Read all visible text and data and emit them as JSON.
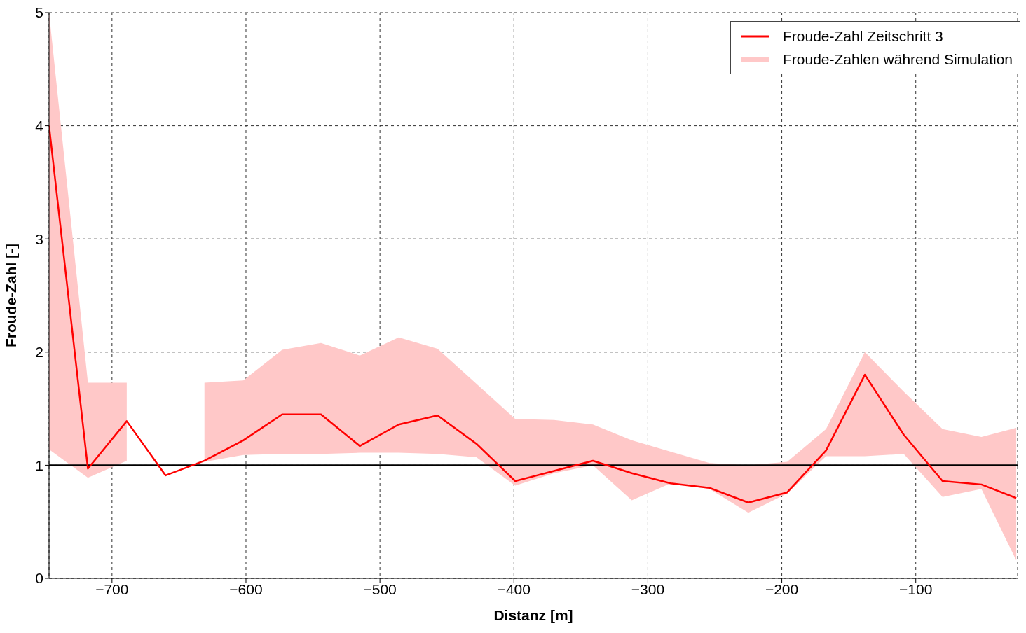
{
  "chart_data": {
    "type": "line",
    "xlabel": "Distanz [m]",
    "ylabel": "Froude-Zahl [-]",
    "x": [
      -747,
      -718,
      -689,
      -660,
      -631,
      -602,
      -573,
      -544,
      -515,
      -486,
      -457,
      -428,
      -399,
      -370,
      -341,
      -312,
      -283,
      -254,
      -225,
      -196,
      -167,
      -138,
      -109,
      -80,
      -51,
      -25
    ],
    "series": [
      {
        "name": "Froude-Zahl Zeitschritt 3",
        "color": "#ff0000",
        "values": [
          4.0,
          0.97,
          1.39,
          0.91,
          1.04,
          1.22,
          1.45,
          1.45,
          1.17,
          1.36,
          1.44,
          1.19,
          0.86,
          0.95,
          1.04,
          0.93,
          0.84,
          0.8,
          0.67,
          0.76,
          1.13,
          1.8,
          1.27,
          0.86,
          0.83,
          0.71
        ]
      },
      {
        "name": "Froude-Zahlen während Simulation",
        "type": "area",
        "color": "#ffc8c8",
        "values": [
          null,
          null,
          null,
          null,
          null,
          null,
          null,
          null,
          null,
          null,
          null,
          null,
          null,
          null,
          null,
          null,
          null,
          null,
          null,
          null,
          null,
          null,
          null,
          null,
          null,
          null
        ],
        "lower": [
          1.14,
          0.89,
          1.04,
          null,
          1.03,
          1.09,
          1.1,
          1.1,
          1.11,
          1.11,
          1.1,
          1.07,
          0.82,
          0.93,
          1.0,
          0.69,
          0.84,
          0.79,
          0.58,
          0.75,
          1.08,
          1.08,
          1.1,
          0.72,
          0.79,
          0.16
        ],
        "upper": [
          5,
          1.73,
          1.73,
          null,
          1.73,
          1.75,
          2.02,
          2.08,
          1.97,
          2.13,
          2.03,
          1.72,
          1.41,
          1.4,
          1.36,
          1.22,
          1.12,
          1.02,
          1.0,
          1.03,
          1.32,
          2.0,
          1.65,
          1.32,
          1.25,
          1.33
        ]
      }
    ],
    "xlim": [
      -747,
      -24
    ],
    "xticks": [
      -700,
      -600,
      -500,
      -400,
      -300,
      -200,
      -100
    ],
    "ylim": [
      0,
      5
    ],
    "yticks": [
      0,
      1,
      2,
      3,
      4,
      5
    ],
    "ref_lines": [
      {
        "axis": "y",
        "value": 1,
        "color": "#000000",
        "line_style": "solid"
      }
    ],
    "grid": true,
    "legend": "top right",
    "marker": "none",
    "line_style": "solid"
  }
}
